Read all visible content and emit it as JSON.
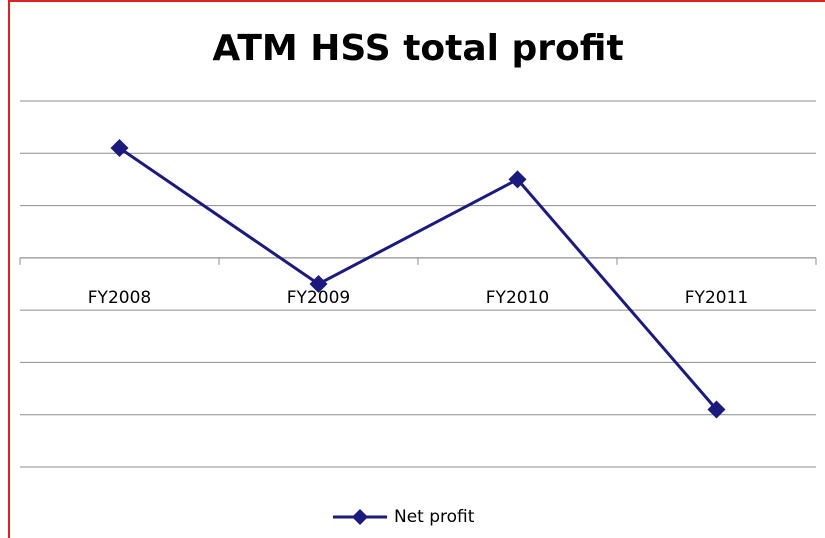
{
  "chart_data": {
    "type": "line",
    "title": "ATM HSS total profit",
    "categories": [
      "FY2008",
      "FY2009",
      "FY2010",
      "FY2011"
    ],
    "series": [
      {
        "name": "Net profit",
        "color": "#1c1a7c",
        "values": [
          2.1,
          -0.5,
          1.5,
          -2.9
        ]
      }
    ],
    "ylim": [
      -4,
      3
    ],
    "yticks": [
      -4,
      -3,
      -2,
      -1,
      0,
      1,
      2,
      3
    ],
    "grid": true,
    "legend": "bottom"
  }
}
